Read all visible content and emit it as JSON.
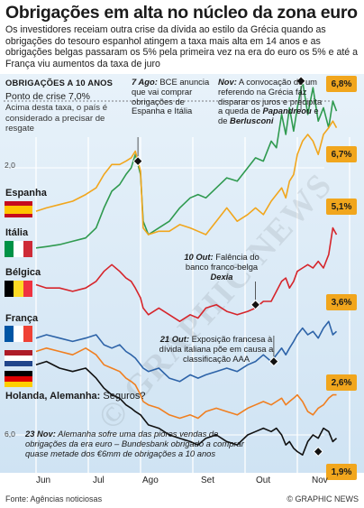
{
  "title": "Obrigações em alta no núcleo da zona euro",
  "intro": "Os investidores receiam outra crise da dívida ao estilo da Grécia quando as obrigações do tesouro espanhol atingem a taxa mais alta em 14 anos e as obrigações belgas passaram os 5% pela primeira vez na era do euro os 5% e até a França viu aumentos da taxa de juro",
  "subhead": "OBRIGAÇÕES A 10 ANOS",
  "crisis": {
    "title": "Ponto de crise 7,0%",
    "body": "Acima desta taxa, o país é considerado a precisar de resgate"
  },
  "annotations": {
    "ago": {
      "date": "7 Ago:",
      "text": " BCE anuncia que vai comprar obrigações de Espanha e Itália"
    },
    "nov": {
      "date": "Nov:",
      "text1": " A convocação de um referendo na Grécia faz disparar os juros e precipita a queda de ",
      "papandreou": "Papandreou",
      "and": " e de ",
      "berlusconi": "Berlusconi"
    },
    "out10": {
      "date": "10 Out:",
      "text": " Falência do banco franco-belga ",
      "dexia": "Dexia"
    },
    "out21": {
      "date": "21 Out:",
      "text": " Exposição francesa à dívida italiana põe em causa a classificação AAA"
    },
    "nov23": {
      "date": "23 Nov:",
      "text": " Alemanha sofre uma das piores vendas de obrigações da era euro – Bundesbank obrigado a comprar quase metade dos €6mm de obrigações a 10 anos"
    }
  },
  "countries": {
    "spain": "Espanha",
    "italy": "Itália",
    "belgium": "Bélgica",
    "france": "França",
    "netherlands_germany": "Holanda, Alemanha:",
    "netherlands_germany_q": "Seguros?"
  },
  "badges": [
    "6,8%",
    "6,7%",
    "5,1%",
    "3,6%",
    "2,6%",
    "1,9%"
  ],
  "watermark": "© GRAPHIC NEWS",
  "source": "Fonte: Agências noticiosas",
  "copyright": "© GRAPHIC NEWS",
  "colors": {
    "spain": "#f1a61d",
    "italy": "#2f9a4f",
    "belgium": "#d6252b",
    "france": "#2d63a8",
    "netherlands": "#f07f20",
    "germany": "#111111",
    "background": "#d7e8f6",
    "badge": "#f1a61d"
  },
  "chart_data": {
    "type": "line",
    "x_ticks": [
      "Jun",
      "Jul",
      "Ago",
      "Set",
      "Out",
      "Nov"
    ],
    "y_ticks": [
      {
        "value": 2.0,
        "label": "2,0"
      },
      {
        "value": 6.0,
        "label": "6,0"
      }
    ],
    "ylim": [
      1.2,
      7.4
    ],
    "crisis_level": 7.0,
    "x_range": [
      0,
      6
    ],
    "series": [
      {
        "name": "Itália",
        "color": "#2f9a4f",
        "points": [
          [
            0,
            4.8
          ],
          [
            0.2,
            4.82
          ],
          [
            0.45,
            4.85
          ],
          [
            0.7,
            4.9
          ],
          [
            0.95,
            4.95
          ],
          [
            1.15,
            5.1
          ],
          [
            1.3,
            5.4
          ],
          [
            1.45,
            5.65
          ],
          [
            1.6,
            5.75
          ],
          [
            1.72,
            5.9
          ],
          [
            1.82,
            6.0
          ],
          [
            1.9,
            6.2
          ],
          [
            2.0,
            5.9
          ],
          [
            2.05,
            5.2
          ],
          [
            2.15,
            5.0
          ],
          [
            2.35,
            5.1
          ],
          [
            2.55,
            5.2
          ],
          [
            2.75,
            5.4
          ],
          [
            2.95,
            5.55
          ],
          [
            3.1,
            5.6
          ],
          [
            3.25,
            5.55
          ],
          [
            3.45,
            5.7
          ],
          [
            3.65,
            5.85
          ],
          [
            3.85,
            5.8
          ],
          [
            4.05,
            6.0
          ],
          [
            4.2,
            6.15
          ],
          [
            4.35,
            6.1
          ],
          [
            4.5,
            6.4
          ],
          [
            4.6,
            6.3
          ],
          [
            4.7,
            6.8
          ],
          [
            4.78,
            6.5
          ],
          [
            4.85,
            6.9
          ],
          [
            4.93,
            6.55
          ],
          [
            5.0,
            6.9
          ],
          [
            5.1,
            7.3
          ],
          [
            5.2,
            6.8
          ],
          [
            5.3,
            7.2
          ],
          [
            5.4,
            6.7
          ],
          [
            5.5,
            6.9
          ],
          [
            5.6,
            6.6
          ],
          [
            5.68,
            7.0
          ],
          [
            5.75,
            6.85
          ]
        ]
      },
      {
        "name": "Espanha",
        "color": "#f1a61d",
        "points": [
          [
            0,
            5.35
          ],
          [
            0.2,
            5.4
          ],
          [
            0.45,
            5.45
          ],
          [
            0.7,
            5.5
          ],
          [
            0.95,
            5.6
          ],
          [
            1.15,
            5.7
          ],
          [
            1.3,
            5.9
          ],
          [
            1.45,
            6.05
          ],
          [
            1.6,
            6.05
          ],
          [
            1.72,
            6.1
          ],
          [
            1.82,
            6.15
          ],
          [
            1.9,
            6.25
          ],
          [
            2.0,
            5.95
          ],
          [
            2.05,
            5.1
          ],
          [
            2.15,
            5.0
          ],
          [
            2.35,
            5.05
          ],
          [
            2.55,
            5.05
          ],
          [
            2.75,
            5.15
          ],
          [
            2.95,
            5.1
          ],
          [
            3.1,
            5.05
          ],
          [
            3.25,
            5.0
          ],
          [
            3.45,
            5.2
          ],
          [
            3.65,
            5.4
          ],
          [
            3.85,
            5.2
          ],
          [
            4.05,
            5.3
          ],
          [
            4.2,
            5.4
          ],
          [
            4.35,
            5.3
          ],
          [
            4.5,
            5.5
          ],
          [
            4.6,
            5.6
          ],
          [
            4.7,
            5.7
          ],
          [
            4.78,
            5.55
          ],
          [
            4.85,
            5.8
          ],
          [
            4.93,
            5.9
          ],
          [
            5.0,
            6.2
          ],
          [
            5.1,
            6.4
          ],
          [
            5.2,
            6.5
          ],
          [
            5.3,
            6.4
          ],
          [
            5.4,
            6.2
          ],
          [
            5.5,
            6.5
          ],
          [
            5.6,
            6.6
          ],
          [
            5.68,
            6.7
          ],
          [
            5.75,
            6.6
          ]
        ]
      },
      {
        "name": "Bélgica",
        "color": "#d6252b",
        "points": [
          [
            0,
            4.25
          ],
          [
            0.2,
            4.2
          ],
          [
            0.45,
            4.2
          ],
          [
            0.7,
            4.15
          ],
          [
            0.95,
            4.2
          ],
          [
            1.15,
            4.3
          ],
          [
            1.3,
            4.45
          ],
          [
            1.45,
            4.55
          ],
          [
            1.6,
            4.45
          ],
          [
            1.72,
            4.35
          ],
          [
            1.82,
            4.3
          ],
          [
            1.9,
            4.2
          ],
          [
            2.0,
            4.05
          ],
          [
            2.05,
            3.9
          ],
          [
            2.15,
            3.8
          ],
          [
            2.35,
            3.9
          ],
          [
            2.55,
            3.8
          ],
          [
            2.75,
            3.7
          ],
          [
            2.95,
            3.8
          ],
          [
            3.1,
            3.75
          ],
          [
            3.25,
            3.9
          ],
          [
            3.45,
            3.95
          ],
          [
            3.65,
            3.85
          ],
          [
            3.85,
            3.8
          ],
          [
            4.05,
            3.85
          ],
          [
            4.2,
            3.9
          ],
          [
            4.35,
            4.0
          ],
          [
            4.5,
            4.0
          ],
          [
            4.6,
            4.15
          ],
          [
            4.7,
            4.3
          ],
          [
            4.78,
            4.35
          ],
          [
            4.85,
            4.2
          ],
          [
            4.93,
            4.3
          ],
          [
            5.0,
            4.45
          ],
          [
            5.1,
            4.5
          ],
          [
            5.2,
            4.55
          ],
          [
            5.3,
            4.5
          ],
          [
            5.4,
            4.6
          ],
          [
            5.5,
            4.5
          ],
          [
            5.6,
            4.7
          ],
          [
            5.68,
            5.1
          ],
          [
            5.75,
            5.0
          ]
        ]
      },
      {
        "name": "França",
        "color": "#2d63a8",
        "points": [
          [
            0,
            3.45
          ],
          [
            0.2,
            3.5
          ],
          [
            0.45,
            3.45
          ],
          [
            0.7,
            3.4
          ],
          [
            0.95,
            3.45
          ],
          [
            1.15,
            3.5
          ],
          [
            1.3,
            3.35
          ],
          [
            1.45,
            3.3
          ],
          [
            1.6,
            3.35
          ],
          [
            1.72,
            3.25
          ],
          [
            1.82,
            3.2
          ],
          [
            1.9,
            3.15
          ],
          [
            2.0,
            3.05
          ],
          [
            2.05,
            3.0
          ],
          [
            2.15,
            2.95
          ],
          [
            2.35,
            3.0
          ],
          [
            2.55,
            2.85
          ],
          [
            2.75,
            2.8
          ],
          [
            2.95,
            2.9
          ],
          [
            3.1,
            2.85
          ],
          [
            3.25,
            2.9
          ],
          [
            3.45,
            2.95
          ],
          [
            3.65,
            3.0
          ],
          [
            3.85,
            2.95
          ],
          [
            4.05,
            3.05
          ],
          [
            4.2,
            3.1
          ],
          [
            4.35,
            3.2
          ],
          [
            4.5,
            3.1
          ],
          [
            4.6,
            3.2
          ],
          [
            4.7,
            3.3
          ],
          [
            4.78,
            3.2
          ],
          [
            4.85,
            3.3
          ],
          [
            4.93,
            3.4
          ],
          [
            5.0,
            3.5
          ],
          [
            5.1,
            3.6
          ],
          [
            5.2,
            3.5
          ],
          [
            5.3,
            3.55
          ],
          [
            5.4,
            3.45
          ],
          [
            5.5,
            3.6
          ],
          [
            5.6,
            3.7
          ],
          [
            5.68,
            3.5
          ],
          [
            5.75,
            3.55
          ]
        ]
      },
      {
        "name": "Holanda",
        "color": "#f07f20",
        "points": [
          [
            0,
            3.25
          ],
          [
            0.2,
            3.3
          ],
          [
            0.45,
            3.25
          ],
          [
            0.7,
            3.2
          ],
          [
            0.95,
            3.3
          ],
          [
            1.15,
            3.2
          ],
          [
            1.3,
            3.05
          ],
          [
            1.45,
            3.0
          ],
          [
            1.6,
            2.95
          ],
          [
            1.72,
            2.85
          ],
          [
            1.82,
            2.8
          ],
          [
            1.9,
            2.75
          ],
          [
            2.0,
            2.6
          ],
          [
            2.05,
            2.5
          ],
          [
            2.15,
            2.45
          ],
          [
            2.35,
            2.4
          ],
          [
            2.55,
            2.3
          ],
          [
            2.75,
            2.25
          ],
          [
            2.95,
            2.3
          ],
          [
            3.1,
            2.25
          ],
          [
            3.25,
            2.35
          ],
          [
            3.45,
            2.4
          ],
          [
            3.65,
            2.35
          ],
          [
            3.85,
            2.3
          ],
          [
            4.05,
            2.4
          ],
          [
            4.2,
            2.45
          ],
          [
            4.35,
            2.5
          ],
          [
            4.5,
            2.45
          ],
          [
            4.6,
            2.5
          ],
          [
            4.7,
            2.55
          ],
          [
            4.78,
            2.45
          ],
          [
            4.85,
            2.5
          ],
          [
            4.93,
            2.55
          ],
          [
            5.0,
            2.6
          ],
          [
            5.1,
            2.5
          ],
          [
            5.2,
            2.35
          ],
          [
            5.3,
            2.3
          ],
          [
            5.4,
            2.4
          ],
          [
            5.5,
            2.45
          ],
          [
            5.6,
            2.55
          ],
          [
            5.68,
            2.6
          ],
          [
            5.75,
            2.6
          ]
        ]
      },
      {
        "name": "Alemanha",
        "color": "#111111",
        "points": [
          [
            0,
            3.05
          ],
          [
            0.2,
            3.1
          ],
          [
            0.45,
            3.0
          ],
          [
            0.7,
            2.95
          ],
          [
            0.95,
            3.0
          ],
          [
            1.15,
            2.85
          ],
          [
            1.3,
            2.7
          ],
          [
            1.45,
            2.6
          ],
          [
            1.6,
            2.55
          ],
          [
            1.72,
            2.45
          ],
          [
            1.82,
            2.4
          ],
          [
            1.9,
            2.35
          ],
          [
            2.0,
            2.3
          ],
          [
            2.05,
            2.25
          ],
          [
            2.15,
            2.15
          ],
          [
            2.35,
            2.1
          ],
          [
            2.55,
            2.0
          ],
          [
            2.75,
            1.95
          ],
          [
            2.95,
            1.9
          ],
          [
            3.1,
            1.85
          ],
          [
            3.25,
            1.95
          ],
          [
            3.45,
            2.0
          ],
          [
            3.65,
            1.9
          ],
          [
            3.85,
            1.85
          ],
          [
            4.05,
            2.0
          ],
          [
            4.2,
            2.05
          ],
          [
            4.35,
            2.1
          ],
          [
            4.5,
            2.05
          ],
          [
            4.6,
            2.1
          ],
          [
            4.7,
            2.0
          ],
          [
            4.78,
            1.85
          ],
          [
            4.85,
            1.9
          ],
          [
            4.93,
            1.8
          ],
          [
            5.0,
            1.75
          ],
          [
            5.1,
            1.7
          ],
          [
            5.2,
            1.9
          ],
          [
            5.3,
            2.0
          ],
          [
            5.4,
            1.95
          ],
          [
            5.5,
            2.1
          ],
          [
            5.6,
            2.05
          ],
          [
            5.68,
            1.9
          ],
          [
            5.75,
            1.95
          ]
        ]
      }
    ]
  }
}
